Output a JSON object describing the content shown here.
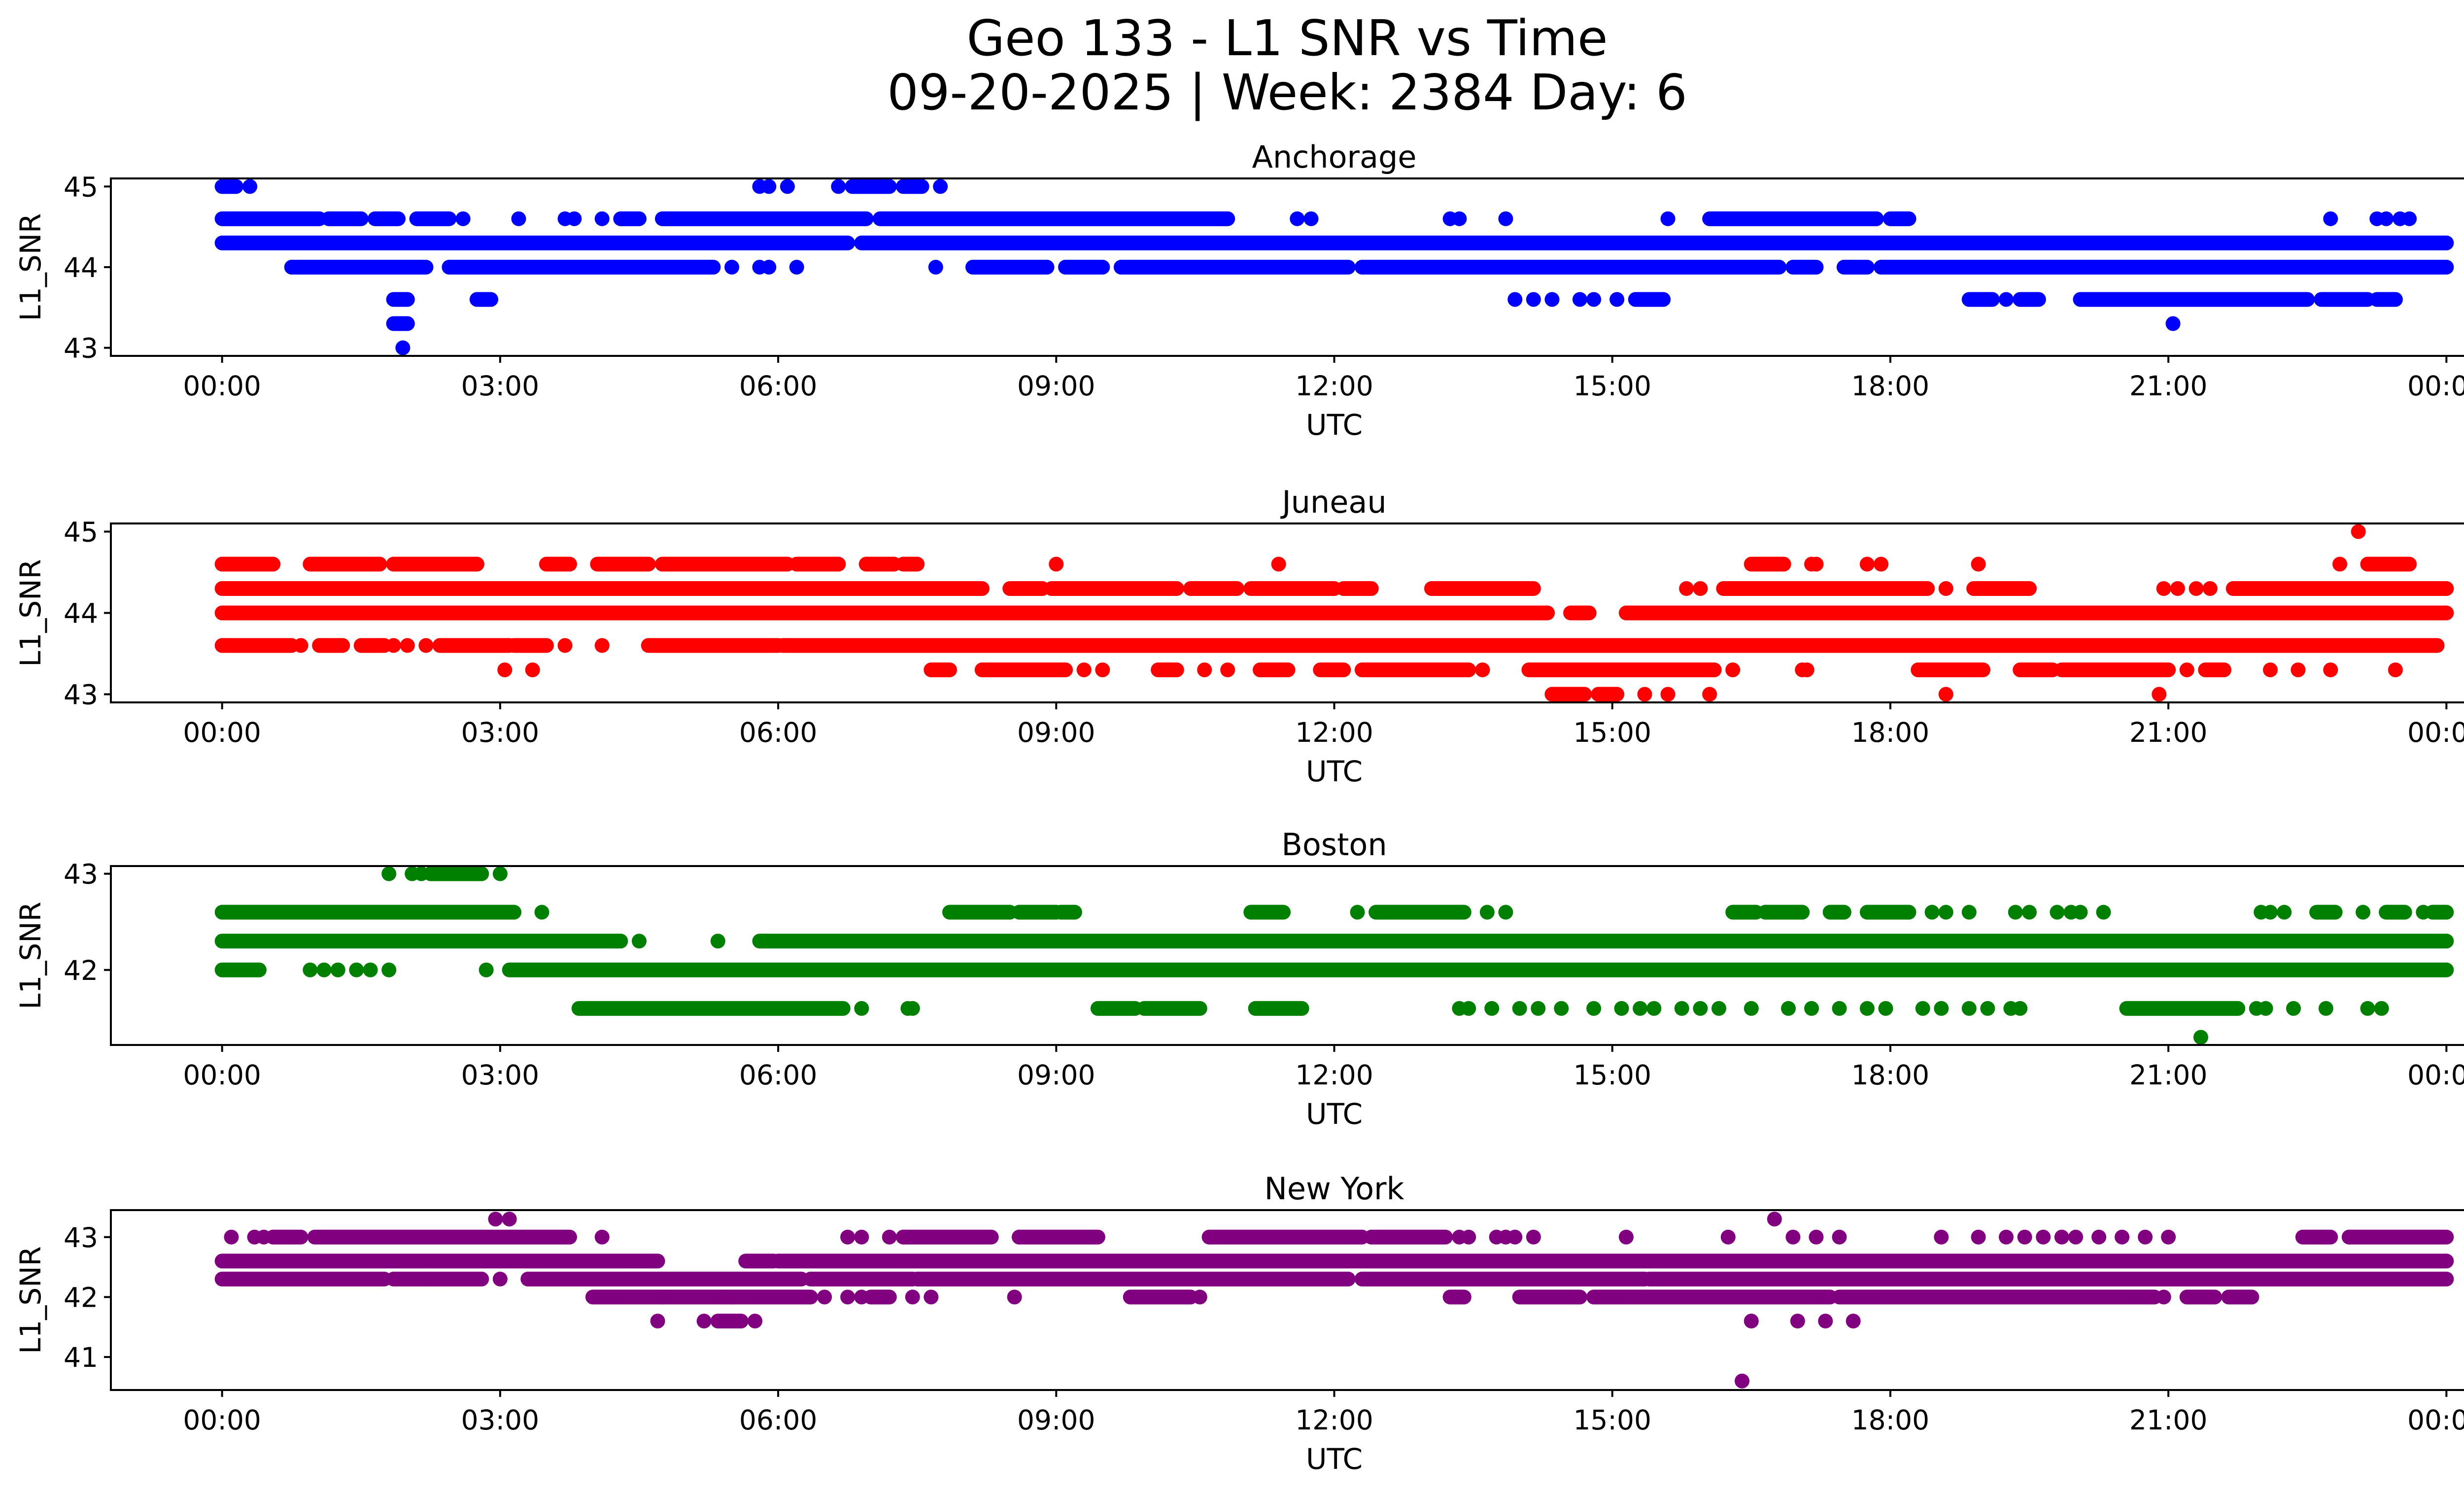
{
  "figure": {
    "title_line1": "Geo 133 - L1 SNR vs Time",
    "title_line2": "09-20-2025 | Week: 2384 Day: 6"
  },
  "chart_data": [
    {
      "type": "scatter",
      "title": "Anchorage",
      "xlabel": "UTC",
      "ylabel": "L1_SNR",
      "color": "#0000ff",
      "xlim_hours": [
        -1.2,
        25.2
      ],
      "ylim": [
        42.9,
        45.1
      ],
      "yticks": [
        43,
        44,
        45
      ],
      "xticks_hours": [
        0,
        3,
        6,
        9,
        12,
        15,
        18,
        21,
        24
      ],
      "xtick_labels": [
        "00:00",
        "03:00",
        "06:00",
        "09:00",
        "12:00",
        "15:00",
        "18:00",
        "21:00",
        "00:00"
      ],
      "series": [
        {
          "level": 44.3,
          "runs": [
            [
              0,
              6.75
            ],
            [
              6.9,
              24
            ]
          ],
          "dots": []
        },
        {
          "level": 44.6,
          "runs": [
            [
              0,
              1.05
            ],
            [
              1.15,
              1.5
            ],
            [
              1.65,
              1.9
            ],
            [
              2.1,
              2.45
            ],
            [
              4.3,
              4.5
            ],
            [
              4.75,
              6.95
            ],
            [
              7.1,
              10.85
            ],
            [
              16.05,
              17.85
            ],
            [
              18.0,
              18.2
            ]
          ],
          "dots": [
            2.6,
            3.2,
            3.7,
            3.8,
            4.1,
            11.6,
            11.75,
            13.25,
            13.35,
            13.85,
            15.6,
            22.75,
            23.25,
            23.35,
            23.5,
            23.6
          ]
        },
        {
          "level": 44.0,
          "runs": [
            [
              0.75,
              2.2
            ],
            [
              2.45,
              5.3
            ],
            [
              8.1,
              8.9
            ],
            [
              9.1,
              9.5
            ],
            [
              9.7,
              12.15
            ],
            [
              12.3,
              16.8
            ],
            [
              16.95,
              17.2
            ],
            [
              17.5,
              17.75
            ],
            [
              17.9,
              24
            ]
          ],
          "dots": [
            5.5,
            5.8,
            5.9,
            6.2,
            7.7
          ]
        },
        {
          "level": 43.6,
          "runs": [
            [
              1.85,
              2.0
            ],
            [
              2.75,
              2.9
            ],
            [
              15.25,
              15.55
            ],
            [
              18.85,
              19.1
            ],
            [
              19.4,
              19.6
            ],
            [
              20.05,
              22.5
            ],
            [
              22.65,
              23.15
            ],
            [
              23.25,
              23.45
            ]
          ],
          "dots": [
            13.95,
            14.15,
            14.35,
            14.65,
            14.8,
            15.05,
            19.25
          ]
        },
        {
          "level": 45.0,
          "runs": [
            [
              0.0,
              0.15
            ],
            [
              6.8,
              7.2
            ],
            [
              7.35,
              7.55
            ]
          ],
          "dots": [
            0.3,
            5.8,
            5.9,
            6.1,
            6.65,
            7.75
          ]
        },
        {
          "level": 43.3,
          "runs": [
            [
              1.85,
              2.0
            ]
          ],
          "dots": [
            21.05
          ]
        },
        {
          "level": 43.0,
          "runs": [],
          "dots": [
            1.95
          ]
        }
      ]
    },
    {
      "type": "scatter",
      "title": "Juneau",
      "xlabel": "UTC",
      "ylabel": "L1_SNR",
      "color": "#ff0000",
      "xlim_hours": [
        -1.2,
        25.2
      ],
      "ylim": [
        42.9,
        45.1
      ],
      "yticks": [
        43,
        44,
        45
      ],
      "xticks_hours": [
        0,
        3,
        6,
        9,
        12,
        15,
        18,
        21,
        24
      ],
      "xtick_labels": [
        "00:00",
        "03:00",
        "06:00",
        "09:00",
        "12:00",
        "15:00",
        "18:00",
        "21:00",
        "00:00"
      ],
      "series": [
        {
          "level": 44.0,
          "runs": [
            [
              0,
              14.3
            ],
            [
              14.55,
              14.75
            ],
            [
              15.15,
              24
            ]
          ],
          "dots": []
        },
        {
          "level": 44.3,
          "runs": [
            [
              0,
              8.2
            ],
            [
              8.5,
              8.85
            ],
            [
              8.95,
              10.3
            ],
            [
              10.45,
              10.95
            ],
            [
              11.1,
              12.0
            ],
            [
              12.1,
              12.4
            ],
            [
              13.05,
              14.15
            ],
            [
              16.2,
              18.4
            ],
            [
              18.9,
              19.5
            ],
            [
              21.7,
              24
            ]
          ],
          "dots": [
            15.8,
            15.95,
            18.6,
            20.95,
            21.1,
            21.3,
            21.45
          ]
        },
        {
          "level": 44.6,
          "runs": [
            [
              0,
              0.55
            ],
            [
              0.95,
              1.7
            ],
            [
              1.85,
              2.75
            ],
            [
              3.5,
              3.75
            ],
            [
              4.05,
              4.6
            ],
            [
              4.75,
              6.1
            ],
            [
              6.2,
              6.65
            ],
            [
              6.95,
              7.25
            ],
            [
              7.35,
              7.5
            ],
            [
              16.5,
              16.85
            ],
            [
              23.15,
              23.6
            ]
          ],
          "dots": [
            17.15,
            17.2,
            17.75,
            17.9,
            9.0,
            11.4,
            18.95,
            22.85
          ]
        },
        {
          "level": 43.6,
          "runs": [
            [
              0,
              0.75
            ],
            [
              1.05,
              1.3
            ],
            [
              1.5,
              1.75
            ],
            [
              2.35,
              3.1
            ],
            [
              3.15,
              3.5
            ],
            [
              4.6,
              6.0
            ],
            [
              6.05,
              23.9
            ]
          ],
          "dots": [
            0.85,
            1.85,
            2.0,
            2.2,
            3.7,
            4.1,
            4.75
          ]
        },
        {
          "level": 43.3,
          "runs": [
            [
              7.65,
              7.85
            ],
            [
              8.2,
              9.1
            ],
            [
              10.1,
              10.3
            ],
            [
              11.2,
              11.5
            ],
            [
              11.85,
              12.1
            ],
            [
              12.3,
              13.1
            ],
            [
              13.1,
              13.45
            ],
            [
              14.1,
              16.1
            ],
            [
              18.3,
              19.0
            ],
            [
              19.4,
              19.75
            ],
            [
              19.85,
              21.0
            ],
            [
              21.4,
              21.6
            ]
          ],
          "dots": [
            3.05,
            3.35,
            9.3,
            9.5,
            10.6,
            10.85,
            13.6,
            16.3,
            17.05,
            17.1,
            21.2,
            22.1,
            22.4,
            22.75,
            23.45
          ]
        },
        {
          "level": 43.0,
          "runs": [
            [
              14.35,
              14.7
            ],
            [
              14.85,
              15.05
            ]
          ],
          "dots": [
            15.35,
            15.6,
            16.05,
            18.6,
            20.9
          ]
        },
        {
          "level": 45.0,
          "runs": [],
          "dots": [
            23.05
          ]
        }
      ]
    },
    {
      "type": "scatter",
      "title": "Boston",
      "xlabel": "UTC",
      "ylabel": "L1_SNR",
      "color": "#008000",
      "xlim_hours": [
        -1.2,
        25.2
      ],
      "ylim": [
        41.22,
        43.08
      ],
      "yticks": [
        42,
        43
      ],
      "xticks_hours": [
        0,
        3,
        6,
        9,
        12,
        15,
        18,
        21,
        24
      ],
      "xtick_labels": [
        "00:00",
        "03:00",
        "06:00",
        "09:00",
        "12:00",
        "15:00",
        "18:00",
        "21:00",
        "00:00"
      ],
      "series": [
        {
          "level": 42.3,
          "runs": [
            [
              0,
              4.3
            ],
            [
              5.8,
              24
            ]
          ],
          "dots": [
            4.5,
            5.35
          ]
        },
        {
          "level": 42.6,
          "runs": [
            [
              0,
              3.15
            ],
            [
              7.85,
              8.5
            ],
            [
              8.6,
              9.0
            ],
            [
              9.05,
              9.2
            ],
            [
              11.1,
              11.45
            ],
            [
              12.45,
              13.4
            ],
            [
              16.3,
              16.55
            ],
            [
              16.65,
              17.05
            ],
            [
              17.35,
              17.5
            ],
            [
              17.75,
              18.2
            ],
            [
              22.6,
              22.8
            ],
            [
              23.35,
              23.55
            ],
            [
              23.85,
              24
            ]
          ],
          "dots": [
            3.45,
            12.25,
            13.65,
            13.85,
            18.45,
            18.6,
            18.85,
            19.35,
            19.5,
            19.8,
            19.95,
            20.05,
            20.3,
            22.0,
            22.1,
            22.25,
            23.1,
            23.75
          ]
        },
        {
          "level": 42.0,
          "runs": [
            [
              0,
              0.4
            ],
            [
              3.1,
              24
            ]
          ],
          "dots": [
            0.95,
            1.1,
            1.25,
            1.45,
            1.6,
            1.8,
            2.85
          ]
        },
        {
          "level": 41.6,
          "runs": [
            [
              3.85,
              6.7
            ],
            [
              9.45,
              9.85
            ],
            [
              9.95,
              10.55
            ],
            [
              11.15,
              11.65
            ],
            [
              20.55,
              21.75
            ]
          ],
          "dots": [
            6.9,
            7.4,
            7.45,
            13.35,
            13.45,
            13.7,
            14.0,
            14.2,
            14.45,
            14.8,
            15.1,
            15.3,
            15.45,
            15.75,
            15.95,
            16.15,
            16.5,
            16.9,
            17.15,
            17.45,
            17.75,
            17.95,
            18.35,
            18.55,
            18.85,
            19.05,
            19.3,
            19.4,
            21.95,
            22.05,
            22.35,
            22.7,
            23.15,
            23.3
          ]
        },
        {
          "level": 43.0,
          "runs": [
            [
              2.25,
              2.8
            ]
          ],
          "dots": [
            1.8,
            2.05,
            2.15,
            3.0
          ]
        },
        {
          "level": 41.3,
          "runs": [],
          "dots": [
            21.35
          ]
        }
      ]
    },
    {
      "type": "scatter",
      "title": "New York",
      "xlabel": "UTC",
      "ylabel": "L1_SNR",
      "color": "#800080",
      "xlim_hours": [
        -1.2,
        25.2
      ],
      "ylim": [
        40.45,
        43.45
      ],
      "yticks": [
        41,
        42,
        43
      ],
      "xticks_hours": [
        0,
        3,
        6,
        9,
        12,
        15,
        18,
        21,
        24
      ],
      "xtick_labels": [
        "00:00",
        "03:00",
        "06:00",
        "09:00",
        "12:00",
        "15:00",
        "18:00",
        "21:00",
        "00:00"
      ],
      "series": [
        {
          "level": 42.6,
          "runs": [
            [
              0,
              4.7
            ],
            [
              5.65,
              5.95
            ],
            [
              6.0,
              24
            ]
          ],
          "dots": []
        },
        {
          "level": 42.3,
          "runs": [
            [
              0,
              1.75
            ],
            [
              1.85,
              2.8
            ],
            [
              3.3,
              6.25
            ],
            [
              6.35,
              7.45
            ],
            [
              7.5,
              12.15
            ],
            [
              12.3,
              15.35
            ],
            [
              15.4,
              24
            ]
          ],
          "dots": [
            2.25,
            2.35,
            3.0
          ]
        },
        {
          "level": 43.0,
          "runs": [
            [
              0.55,
              0.85
            ],
            [
              1.0,
              3.75
            ],
            [
              7.35,
              8.3
            ],
            [
              8.6,
              9.45
            ],
            [
              10.65,
              12.3
            ],
            [
              12.4,
              13.2
            ],
            [
              22.45,
              22.75
            ],
            [
              22.95,
              24
            ]
          ],
          "dots": [
            0.1,
            0.35,
            0.45,
            4.1,
            6.75,
            6.9,
            7.2,
            7.35,
            8.6,
            13.35,
            13.45,
            13.75,
            13.85,
            13.95,
            14.15,
            15.15,
            16.25,
            16.95,
            17.2,
            17.45,
            18.55,
            18.95,
            19.25,
            19.45,
            19.65,
            19.85,
            20.0,
            20.25,
            20.5,
            20.75,
            21.0,
            22.95
          ]
        },
        {
          "level": 42.0,
          "runs": [
            [
              4.0,
              6.35
            ],
            [
              7.0,
              7.2
            ],
            [
              9.8,
              10.45
            ],
            [
              13.25,
              13.4
            ],
            [
              14.0,
              14.65
            ],
            [
              14.8,
              17.35
            ],
            [
              17.45,
              20.85
            ],
            [
              21.2,
              21.5
            ],
            [
              21.65,
              21.9
            ]
          ],
          "dots": [
            4.75,
            5.4,
            5.5,
            6.5,
            6.75,
            6.9,
            7.45,
            7.65,
            8.55,
            10.55,
            20.95
          ]
        },
        {
          "level": 41.6,
          "runs": [
            [
              5.35,
              5.6
            ]
          ],
          "dots": [
            4.7,
            5.2,
            5.75,
            16.5,
            17.0,
            17.3,
            17.6
          ]
        },
        {
          "level": 43.3,
          "runs": [],
          "dots": [
            2.95,
            3.1,
            16.75
          ]
        },
        {
          "level": 40.6,
          "runs": [],
          "dots": [
            16.4
          ]
        }
      ]
    }
  ]
}
